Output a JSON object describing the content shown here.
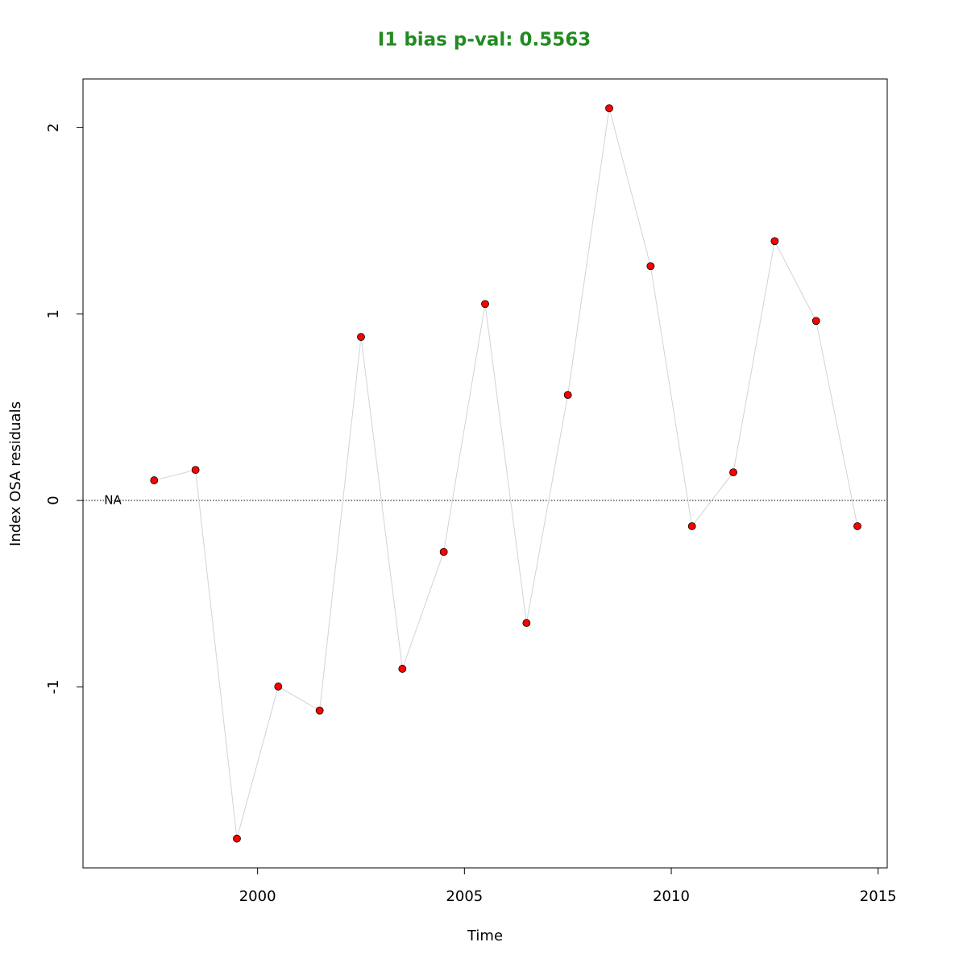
{
  "chart_data": {
    "type": "line",
    "title": "I1 bias p-val: 0.5563",
    "title_color": "#228b22",
    "x_label": "Time",
    "y_label": "Index OSA residuals",
    "x": [
      1996.5,
      1997.5,
      1998.5,
      1999.5,
      2000.5,
      2001.5,
      2002.5,
      2003.5,
      2004.5,
      2005.5,
      2006.5,
      2007.5,
      2008.5,
      2009.5,
      2010.5,
      2011.5,
      2012.5,
      2013.5,
      2014.5
    ],
    "series": [
      {
        "values": [
          null,
          0.108,
          0.164,
          -1.814,
          -0.998,
          -1.127,
          0.877,
          -0.903,
          -0.276,
          1.054,
          -0.657,
          0.566,
          2.104,
          1.257,
          -0.138,
          0.151,
          1.391,
          0.963,
          -0.138
        ],
        "color": "#ff0000",
        "line_color": "#d3d3d3"
      }
    ],
    "missing_label": "NA",
    "reference_line": 0,
    "xlim": [
      1995.78,
      2015.22
    ],
    "ylim": [
      -1.971,
      2.261
    ],
    "xticks": [
      2000,
      2005,
      2010,
      2015
    ],
    "yticks": [
      -1,
      0,
      1,
      2
    ]
  }
}
